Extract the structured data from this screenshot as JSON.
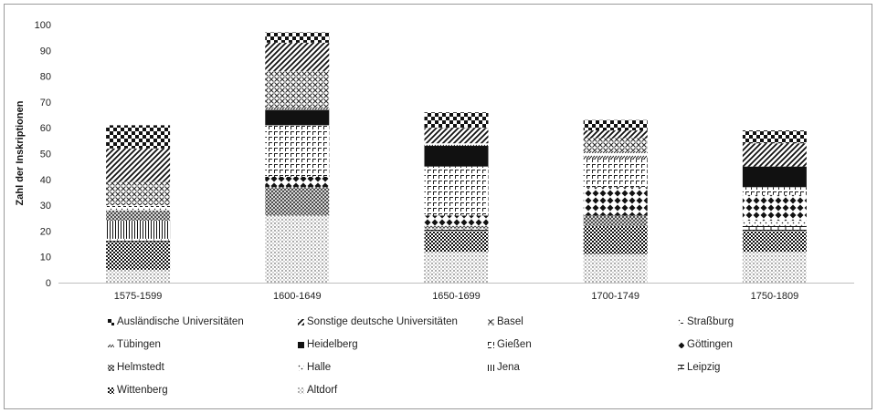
{
  "chart_data": {
    "type": "bar",
    "stacked": true,
    "title": "",
    "xlabel": "",
    "ylabel": "Zahl der Inskriptionen",
    "ylim": [
      0,
      100
    ],
    "yticks": [
      0,
      10,
      20,
      30,
      40,
      50,
      60,
      70,
      80,
      90,
      100
    ],
    "grid": false,
    "legend_position": "bottom",
    "categories": [
      "1575-1599",
      "1600-1649",
      "1650-1699",
      "1700-1749",
      "1750-1809"
    ],
    "series": [
      {
        "name": "Altdorf",
        "pattern": "dots-fine",
        "values": [
          5,
          26,
          12,
          11,
          12
        ]
      },
      {
        "name": "Wittenberg",
        "pattern": "checker-small",
        "values": [
          11,
          0,
          8,
          11,
          8
        ]
      },
      {
        "name": "Leipzig",
        "pattern": "brick",
        "values": [
          1,
          0,
          1,
          0,
          2
        ]
      },
      {
        "name": "Jena",
        "pattern": "vertical-lines",
        "values": [
          7,
          0,
          0,
          0,
          0
        ]
      },
      {
        "name": "Halle",
        "pattern": "dots-sparse",
        "values": [
          0,
          0,
          0,
          0,
          2
        ]
      },
      {
        "name": "Helmstedt",
        "pattern": "crosshatch-dense",
        "values": [
          4,
          11,
          1,
          4,
          0
        ]
      },
      {
        "name": "Göttingen",
        "pattern": "diamonds",
        "values": [
          0,
          4,
          4,
          11,
          10
        ]
      },
      {
        "name": "Gießen",
        "pattern": "corner-marks",
        "values": [
          0,
          20,
          19,
          11,
          3
        ]
      },
      {
        "name": "Heidelberg",
        "pattern": "solid-black",
        "values": [
          0,
          6,
          8,
          0,
          8
        ]
      },
      {
        "name": "Tübingen",
        "pattern": "diagonal-dashes",
        "values": [
          0,
          1,
          1,
          3,
          0
        ]
      },
      {
        "name": "Straßburg",
        "pattern": "dots-dashes",
        "values": [
          2,
          0,
          0,
          0,
          0
        ]
      },
      {
        "name": "Basel",
        "pattern": "x-marks",
        "values": [
          9,
          14,
          0,
          5,
          0
        ]
      },
      {
        "name": "Sonstige deutsche Universitäten",
        "pattern": "diagonal-heavy",
        "values": [
          13,
          11,
          6,
          3,
          9
        ]
      },
      {
        "name": "Ausländische Universitäten",
        "pattern": "checker-large",
        "values": [
          9,
          4,
          6,
          4,
          5
        ]
      }
    ]
  },
  "legend": [
    "Ausländische Universitäten",
    "Sonstige deutsche Universitäten",
    "Basel",
    "Straßburg",
    "Tübingen",
    "Heidelberg",
    "Gießen",
    "Göttingen",
    "Helmstedt",
    "Halle",
    "Jena",
    "Leipzig",
    "Wittenberg",
    "Altdorf"
  ]
}
